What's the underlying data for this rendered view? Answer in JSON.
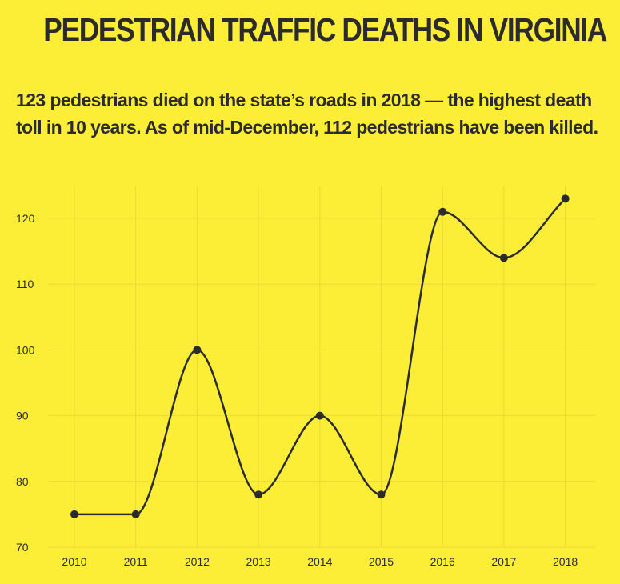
{
  "title": "PEDESTRIAN TRAFFIC DEATHS IN VIRGINIA",
  "subtitle": "123 pedestrians died on the state’s roads in 2018 — the highest death toll in 10 years. As of mid-December, 112 pedestrians have been killed.",
  "colors": {
    "background": "#fcee37",
    "line": "#2b2b2b",
    "grid": "#ead935"
  },
  "chart_data": {
    "type": "line",
    "title": "PEDESTRIAN TRAFFIC DEATHS IN VIRGINIA",
    "xlabel": "",
    "ylabel": "",
    "x": [
      "2010",
      "2011",
      "2012",
      "2013",
      "2014",
      "2015",
      "2016",
      "2017",
      "2018"
    ],
    "series": [
      {
        "values": [
          75,
          75,
          100,
          78,
          90,
          78,
          121,
          114,
          123
        ]
      }
    ],
    "ylim": [
      70,
      125
    ],
    "yticks": [
      70,
      80,
      90,
      100,
      110,
      120
    ],
    "grid": true,
    "legend": "none",
    "curve": "smooth"
  }
}
